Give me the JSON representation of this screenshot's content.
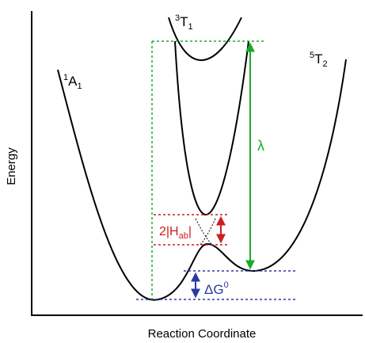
{
  "axes": {
    "x_label": "Reaction Coordinate",
    "y_label": "Energy"
  },
  "states": {
    "a1": {
      "sup": "1",
      "base": "A",
      "sub": "1"
    },
    "t1": {
      "sup": "3",
      "base": "T",
      "sub": "1"
    },
    "t2": {
      "sup": "5",
      "base": "T",
      "sub": "2"
    }
  },
  "annotations": {
    "lambda": "λ",
    "coupling": {
      "prefix": "2|H",
      "sub": "ab",
      "suffix": "|"
    },
    "delta_g": {
      "base": "ΔG",
      "sup": "0"
    }
  },
  "colors": {
    "curves": "#000000",
    "lambda": "#1aaa2a",
    "coupling": "#cc1f1f",
    "delta_g": "#2b3a9f"
  }
}
